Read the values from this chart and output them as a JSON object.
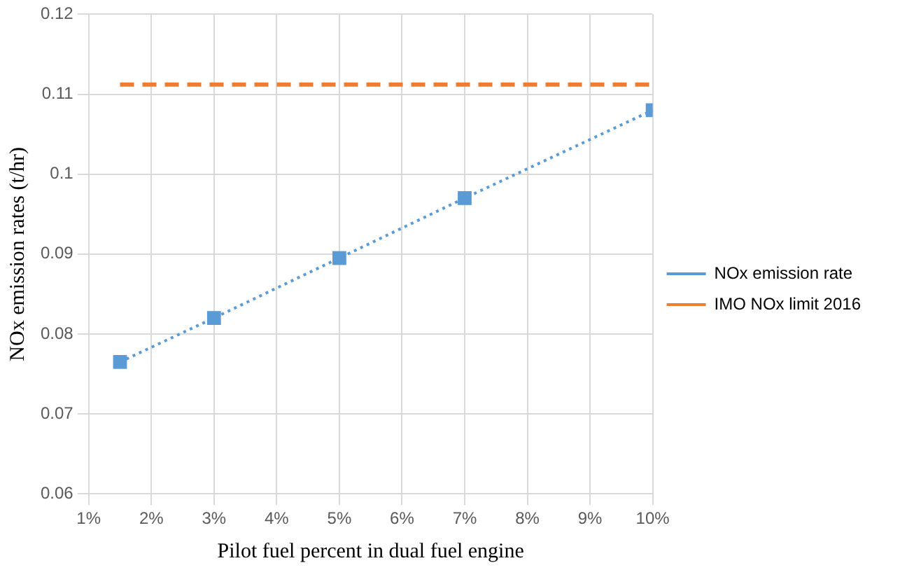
{
  "chart_data": {
    "type": "line",
    "xlabel": "Pilot fuel percent in dual fuel engine",
    "ylabel": "NOx emission rates (t/hr)",
    "xlim": [
      1,
      10
    ],
    "xticks": [
      {
        "value": 1,
        "label": "1%"
      },
      {
        "value": 2,
        "label": "2%"
      },
      {
        "value": 3,
        "label": "3%"
      },
      {
        "value": 4,
        "label": "4%"
      },
      {
        "value": 5,
        "label": "5%"
      },
      {
        "value": 6,
        "label": "6%"
      },
      {
        "value": 7,
        "label": "7%"
      },
      {
        "value": 8,
        "label": "8%"
      },
      {
        "value": 9,
        "label": "9%"
      },
      {
        "value": 10,
        "label": "10%"
      }
    ],
    "ylim": [
      0.06,
      0.12
    ],
    "yticks": [
      0.06,
      0.07,
      0.08,
      0.09,
      {
        "value": 0.1,
        "label": "0.1"
      },
      0.11,
      0.12
    ],
    "grid": true,
    "legend": "right",
    "series": [
      {
        "name": "NOx emission rate",
        "color": "#5b9bd5",
        "x": [
          1.5,
          3,
          5,
          7,
          10
        ],
        "values": [
          0.0765,
          0.082,
          0.0895,
          0.097,
          0.108
        ],
        "marker": "square",
        "line_style": "dotted"
      },
      {
        "name": "IMO NOx limit 2016",
        "color": "#ed7d31",
        "x": [
          1.5,
          10
        ],
        "values": [
          0.1112,
          0.1112
        ],
        "marker": "none",
        "line_style": "dashed"
      }
    ]
  }
}
